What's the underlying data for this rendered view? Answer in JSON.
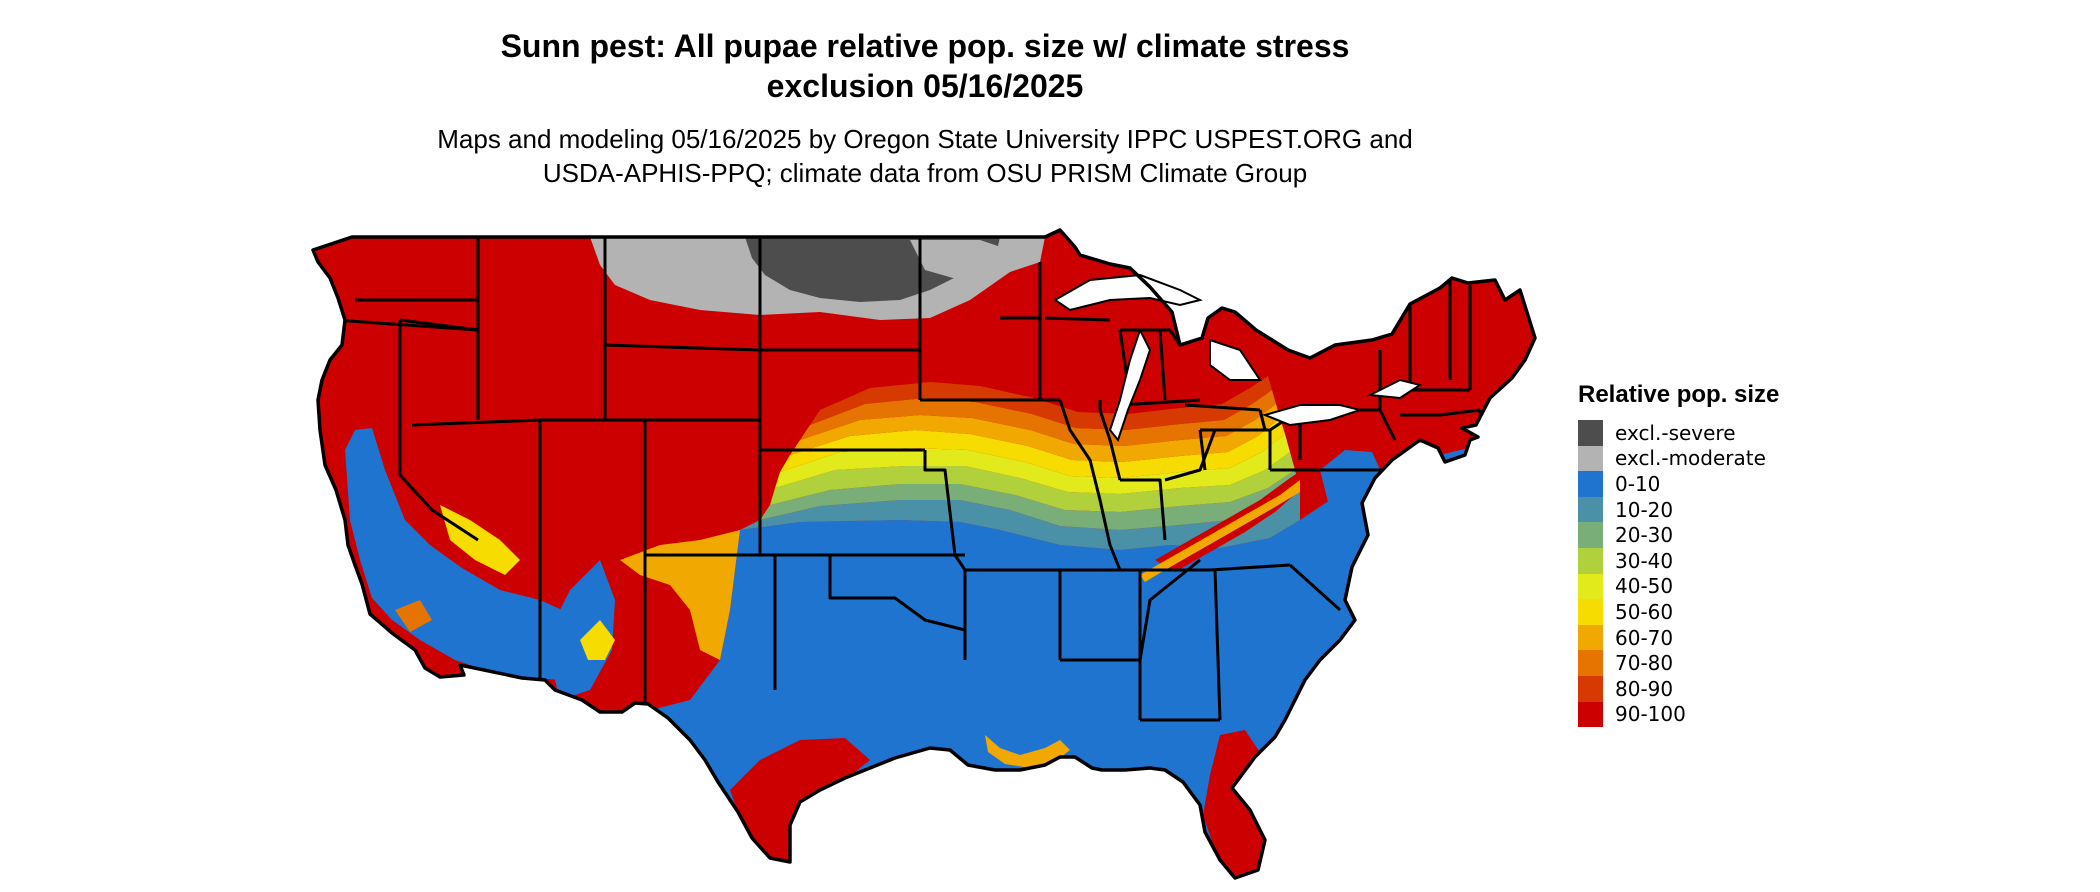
{
  "title": {
    "line1": "Sunn pest: All pupae relative pop. size w/ climate stress",
    "line2": "exclusion 05/16/2025"
  },
  "subtitle": {
    "line1": "Maps and modeling 05/16/2025 by Oregon State University IPPC USPEST.ORG and",
    "line2": "USDA-APHIS-PPQ; climate data from OSU PRISM Climate Group"
  },
  "legend": {
    "title": "Relative pop. size",
    "items": [
      {
        "label": "excl.-severe",
        "color": "#4d4d4d"
      },
      {
        "label": "excl.-moderate",
        "color": "#b3b3b3"
      },
      {
        "label": "0-10",
        "color": "#1f74d0"
      },
      {
        "label": "10-20",
        "color": "#4a91a8"
      },
      {
        "label": "20-30",
        "color": "#7aae78"
      },
      {
        "label": "30-40",
        "color": "#b1d13c"
      },
      {
        "label": "40-50",
        "color": "#e2ea1c"
      },
      {
        "label": "50-60",
        "color": "#f6dc00"
      },
      {
        "label": "60-70",
        "color": "#f1a800"
      },
      {
        "label": "70-80",
        "color": "#e57500"
      },
      {
        "label": "80-90",
        "color": "#d73a00"
      },
      {
        "label": "90-100",
        "color": "#cc0000"
      }
    ]
  }
}
